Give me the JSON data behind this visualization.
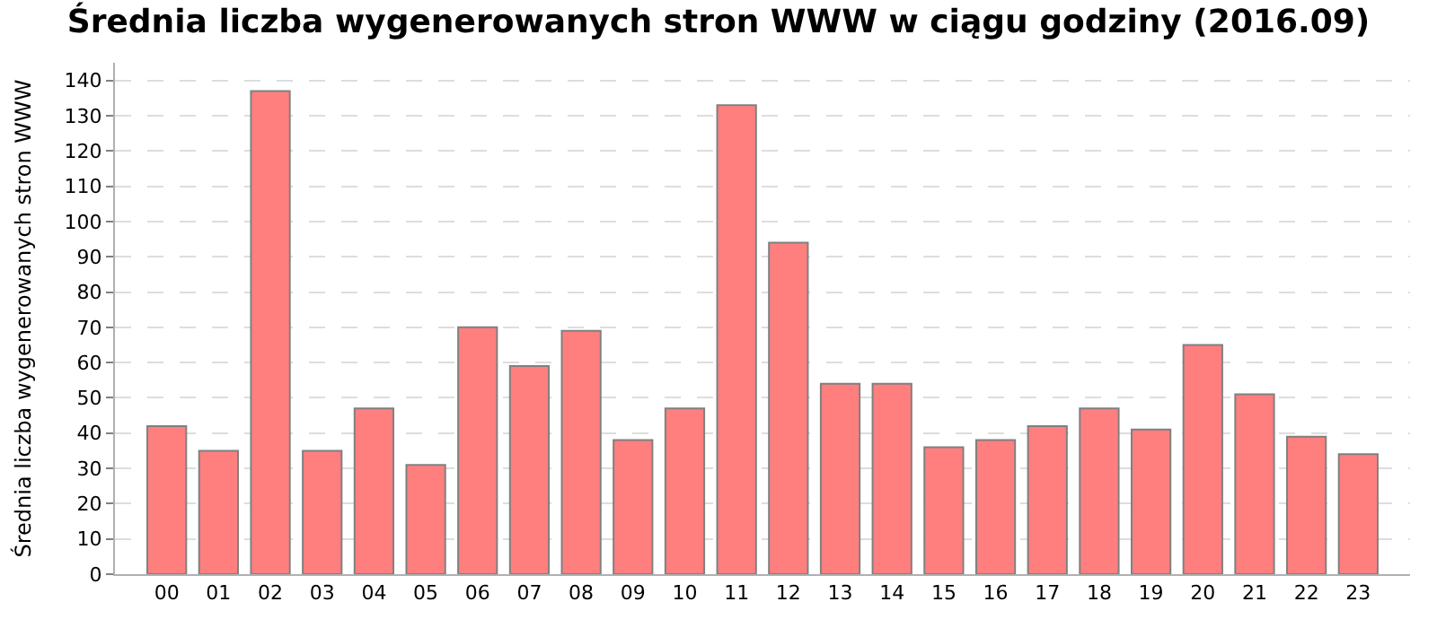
{
  "chart_data": {
    "type": "bar",
    "title": "Średnia liczba wygenerowanych stron WWW w ciągu godziny (2016.09)",
    "ylabel": "Średnia liczba wygenerowanych stron WWW",
    "categories": [
      "00",
      "01",
      "02",
      "03",
      "04",
      "05",
      "06",
      "07",
      "08",
      "09",
      "10",
      "11",
      "12",
      "13",
      "14",
      "15",
      "16",
      "17",
      "18",
      "19",
      "20",
      "21",
      "22",
      "23"
    ],
    "values": [
      42,
      35,
      137,
      35,
      47,
      31,
      70,
      59,
      69,
      38,
      47,
      133,
      94,
      54,
      54,
      36,
      38,
      42,
      47,
      41,
      65,
      51,
      39,
      34
    ],
    "color": "#ff7f7f",
    "ylim": [
      0,
      145
    ],
    "yticks": [
      0,
      10,
      20,
      30,
      40,
      50,
      60,
      70,
      80,
      90,
      100,
      110,
      120,
      130,
      140
    ],
    "grid": "y"
  }
}
